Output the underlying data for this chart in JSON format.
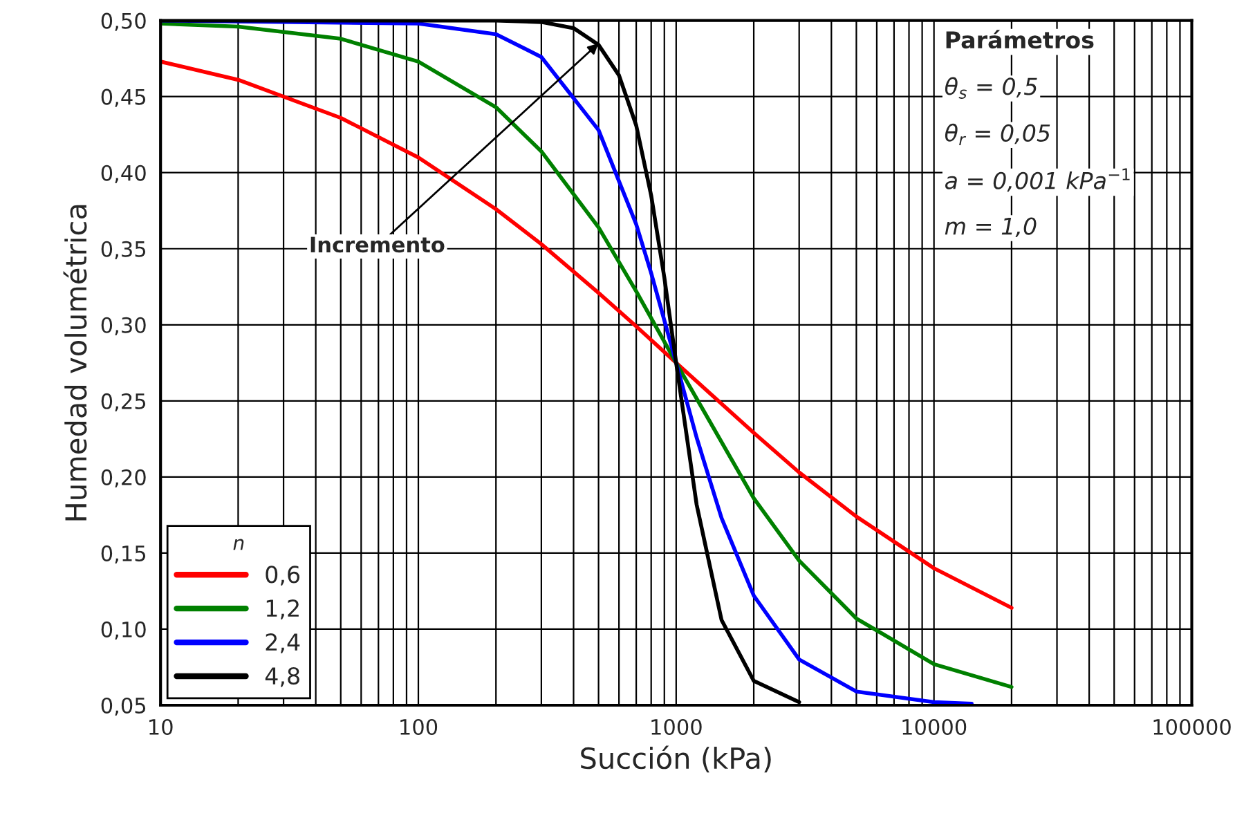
{
  "chart_data": {
    "type": "line",
    "xlabel": "Succión (kPa)",
    "ylabel": "Humedad volumétrica",
    "legend_title": "n",
    "log": "x",
    "xlim": [
      10,
      100000
    ],
    "xticks": [
      10,
      100,
      1000,
      10000,
      100000
    ],
    "ylim": [
      0.05,
      0.5
    ],
    "yticks": [
      {
        "value": 0.05,
        "label": "0,05"
      },
      {
        "value": 0.1,
        "label": "0,10"
      },
      {
        "value": 0.15,
        "label": "0,15"
      },
      {
        "value": 0.2,
        "label": "0,20"
      },
      {
        "value": 0.25,
        "label": "0,25"
      },
      {
        "value": 0.3,
        "label": "0,30"
      },
      {
        "value": 0.35,
        "label": "0,35"
      },
      {
        "value": 0.4,
        "label": "0,40"
      },
      {
        "value": 0.45,
        "label": "0,45"
      },
      {
        "value": 0.5,
        "label": "0,50"
      }
    ],
    "grid": true,
    "legend": "bottom left",
    "marker": "none",
    "line_style": "solid",
    "series": [
      {
        "name": "0,6",
        "color": "#ff0000",
        "x": [
          10,
          20,
          50,
          100,
          200,
          300,
          500,
          700,
          1000,
          2000,
          3000,
          5000,
          10000,
          20000
        ],
        "values": [
          0.473,
          0.461,
          0.436,
          0.41,
          0.376,
          0.353,
          0.321,
          0.299,
          0.275,
          0.229,
          0.203,
          0.174,
          0.14,
          0.114
        ]
      },
      {
        "name": "1,2",
        "color": "#008000",
        "x": [
          10,
          20,
          50,
          100,
          200,
          300,
          500,
          700,
          1000,
          2000,
          3000,
          5000,
          10000,
          20000
        ],
        "values": [
          0.498,
          0.496,
          0.488,
          0.473,
          0.443,
          0.414,
          0.364,
          0.322,
          0.275,
          0.186,
          0.145,
          0.107,
          0.077,
          0.062
        ]
      },
      {
        "name": "2,4",
        "color": "#0000ff",
        "x": [
          10,
          100,
          200,
          300,
          500,
          700,
          800,
          1000,
          1200,
          1500,
          2000,
          3000,
          5000,
          10000,
          14000
        ],
        "values": [
          0.5,
          0.498,
          0.491,
          0.476,
          0.428,
          0.366,
          0.334,
          0.275,
          0.226,
          0.173,
          0.122,
          0.08,
          0.059,
          0.052,
          0.051
        ]
      },
      {
        "name": "4,8",
        "color": "#000000",
        "x": [
          10,
          200,
          300,
          400,
          500,
          600,
          700,
          800,
          900,
          1000,
          1200,
          1500,
          2000,
          3000
        ],
        "values": [
          0.5,
          0.5,
          0.499,
          0.495,
          0.484,
          0.464,
          0.431,
          0.385,
          0.331,
          0.275,
          0.182,
          0.106,
          0.066,
          0.052
        ]
      }
    ],
    "annotations": [
      {
        "text": "Incremento",
        "x": 500,
        "y": 0.485
      },
      "Parámetros",
      "θ$_{s}$ = 0,5",
      "θ$_{r}$ = 0,05",
      "a = 0,001 kPa$^{−1}$",
      "m = 1,0"
    ]
  }
}
